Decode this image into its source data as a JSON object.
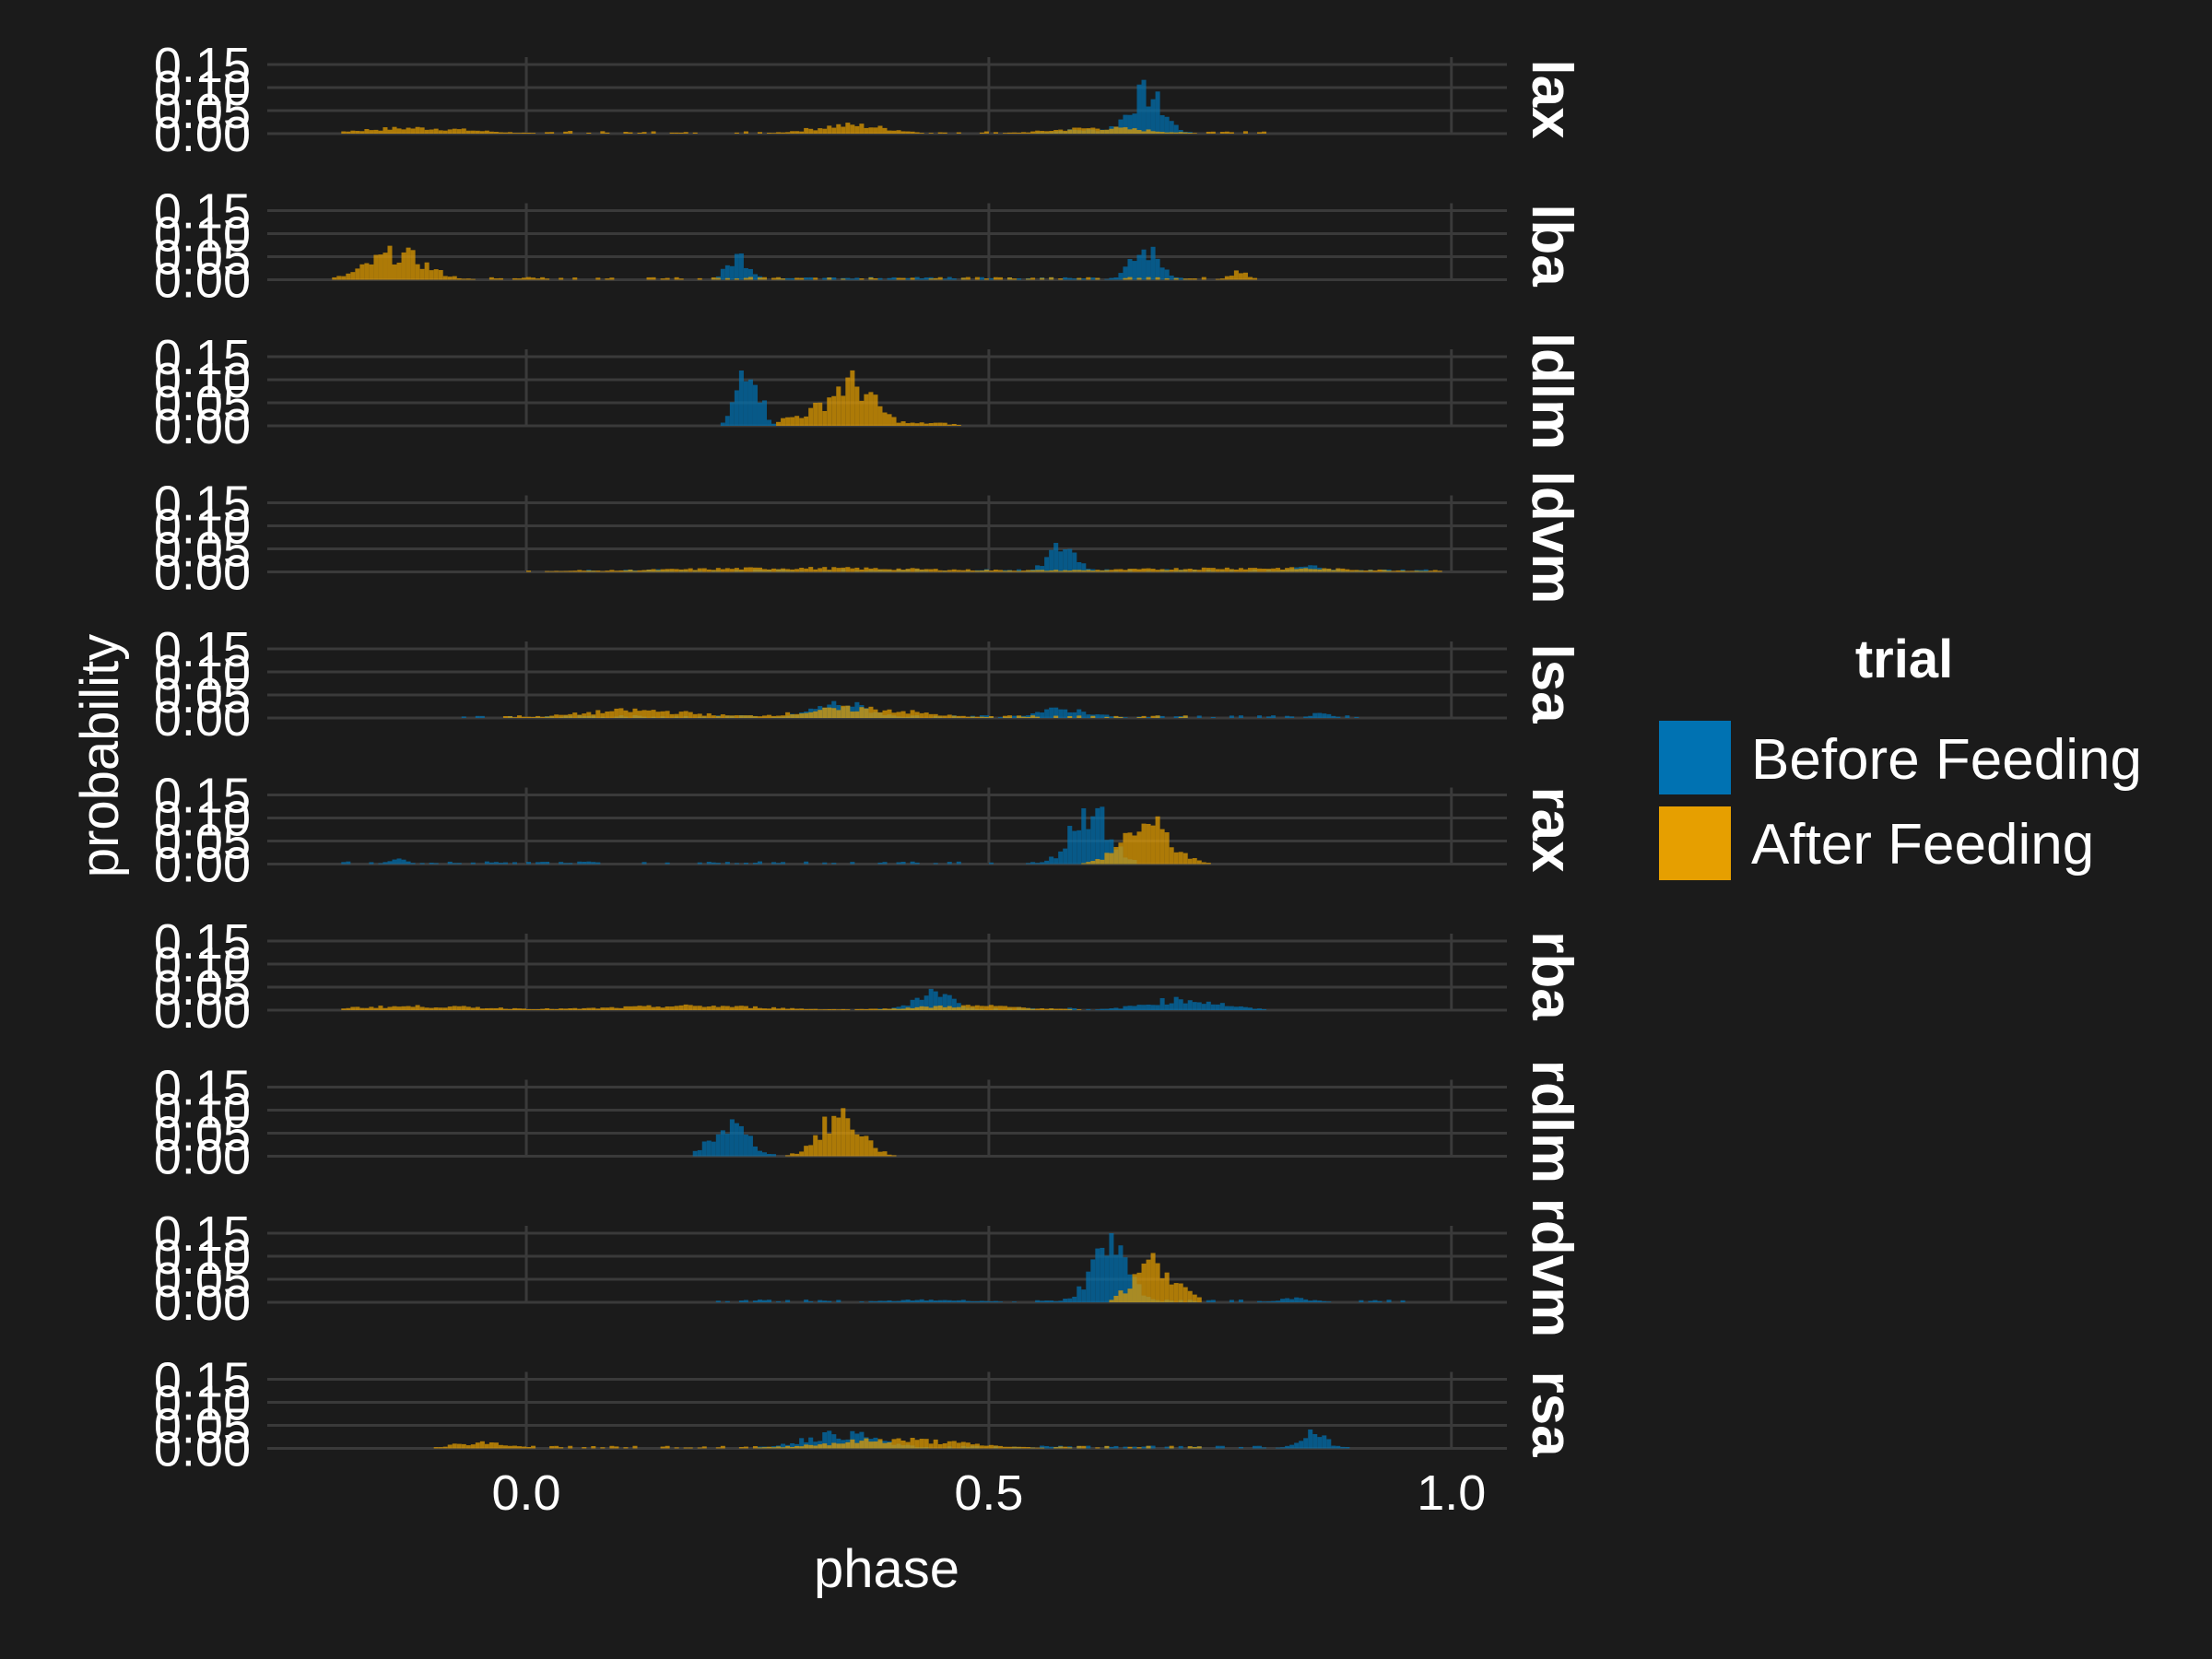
{
  "chart_data": {
    "type": "histogram-facets",
    "xlabel": "phase",
    "ylabel": "probability",
    "xlim": [
      -0.28,
      1.06
    ],
    "ylim": [
      0,
      0.15
    ],
    "x_ticks": [
      "0.0",
      "0.5",
      "1.0"
    ],
    "x_tick_values": [
      0.0,
      0.5,
      1.0
    ],
    "y_ticks": [
      "0.00",
      "0.05",
      "0.10",
      "0.15"
    ],
    "y_tick_values": [
      0.0,
      0.05,
      0.1,
      0.15
    ],
    "bin_width": 0.005,
    "legend": {
      "title": "trial",
      "items": [
        {
          "label": "Before Feeding",
          "color": "#0072B2"
        },
        {
          "label": "After Feeding",
          "color": "#E69F00"
        }
      ]
    },
    "panels": [
      {
        "label": "lax",
        "series": [
          {
            "name": "Before Feeding",
            "peaks": [
              [
                0.67,
                0.085,
                0.018
              ],
              [
                0.6,
                0.008,
                0.03
              ]
            ],
            "range": [
              0.55,
              0.72
            ]
          },
          {
            "name": "After Feeding",
            "peaks": [
              [
                -0.12,
                0.012,
                0.06
              ],
              [
                0.35,
                0.018,
                0.04
              ],
              [
                0.62,
                0.012,
                0.05
              ]
            ],
            "range": [
              -0.2,
              0.8
            ]
          }
        ]
      },
      {
        "label": "lba",
        "series": [
          {
            "name": "Before Feeding",
            "peaks": [
              [
                0.23,
                0.05,
                0.012
              ],
              [
                0.67,
                0.06,
                0.016
              ]
            ],
            "range": [
              0.2,
              0.72
            ]
          },
          {
            "name": "After Feeding",
            "peaks": [
              [
                -0.14,
                0.055,
                0.03
              ],
              [
                0.77,
                0.015,
                0.01
              ]
            ],
            "range": [
              -0.21,
              0.79
            ]
          }
        ]
      },
      {
        "label": "ldlm",
        "series": [
          {
            "name": "Before Feeding",
            "peaks": [
              [
                0.24,
                0.15,
                0.011
              ]
            ],
            "range": [
              0.21,
              0.27
            ]
          },
          {
            "name": "After Feeding",
            "peaks": [
              [
                0.35,
                0.09,
                0.025
              ],
              [
                0.29,
                0.015,
                0.02
              ],
              [
                0.44,
                0.006,
                0.02
              ]
            ],
            "range": [
              0.27,
              0.47
            ]
          }
        ]
      },
      {
        "label": "ldvm",
        "series": [
          {
            "name": "Before Feeding",
            "peaks": [
              [
                0.58,
                0.055,
                0.015
              ],
              [
                0.85,
                0.012,
                0.02
              ]
            ],
            "range": [
              0.05,
              0.98
            ]
          },
          {
            "name": "After Feeding",
            "peaks": [
              [
                0.3,
                0.008,
                0.15
              ],
              [
                0.78,
                0.008,
                0.12
              ]
            ],
            "range": [
              0.0,
              0.99
            ]
          }
        ]
      },
      {
        "label": "lsa",
        "series": [
          {
            "name": "Before Feeding",
            "peaks": [
              [
                0.34,
                0.03,
                0.03
              ],
              [
                0.58,
                0.018,
                0.03
              ],
              [
                0.86,
                0.012,
                0.01
              ]
            ],
            "range": [
              -0.07,
              0.9
            ]
          },
          {
            "name": "After Feeding",
            "peaks": [
              [
                0.12,
                0.016,
                0.06
              ],
              [
                0.36,
                0.02,
                0.06
              ]
            ],
            "range": [
              -0.06,
              0.72
            ]
          }
        ]
      },
      {
        "label": "rax",
        "series": [
          {
            "name": "Before Feeding",
            "peaks": [
              [
                0.61,
                0.12,
                0.02
              ],
              [
                -0.14,
                0.01,
                0.01
              ]
            ],
            "range": [
              -0.2,
              0.66
            ]
          },
          {
            "name": "After Feeding",
            "peaks": [
              [
                0.67,
                0.085,
                0.025
              ]
            ],
            "range": [
              0.6,
              0.74
            ]
          }
        ]
      },
      {
        "label": "rba",
        "series": [
          {
            "name": "Before Feeding",
            "peaks": [
              [
                0.44,
                0.04,
                0.02
              ],
              [
                0.71,
                0.022,
                0.04
              ]
            ],
            "range": [
              0.38,
              0.8
            ]
          },
          {
            "name": "After Feeding",
            "peaks": [
              [
                -0.12,
                0.008,
                0.08
              ],
              [
                0.18,
                0.009,
                0.08
              ],
              [
                0.48,
                0.009,
                0.06
              ]
            ],
            "range": [
              -0.2,
              0.6
            ]
          }
        ]
      },
      {
        "label": "rdlm",
        "series": [
          {
            "name": "Before Feeding",
            "peaks": [
              [
                0.22,
                0.065,
                0.02
              ]
            ],
            "range": [
              0.18,
              0.27
            ]
          },
          {
            "name": "After Feeding",
            "peaks": [
              [
                0.34,
                0.085,
                0.022
              ]
            ],
            "range": [
              0.28,
              0.4
            ]
          }
        ]
      },
      {
        "label": "rdvm",
        "series": [
          {
            "name": "Before Feeding",
            "peaks": [
              [
                0.63,
                0.11,
                0.02
              ],
              [
                0.83,
                0.008,
                0.02
              ],
              [
                0.44,
                0.005,
                0.05
              ]
            ],
            "range": [
              0.2,
              0.95
            ]
          },
          {
            "name": "After Feeding",
            "peaks": [
              [
                0.68,
                0.085,
                0.022
              ]
            ],
            "range": [
              0.63,
              0.73
            ]
          }
        ]
      },
      {
        "label": "rsa",
        "series": [
          {
            "name": "Before Feeding",
            "peaks": [
              [
                0.34,
                0.03,
                0.04
              ],
              [
                0.85,
                0.03,
                0.015
              ]
            ],
            "range": [
              0.25,
              0.89
            ]
          },
          {
            "name": "After Feeding",
            "peaks": [
              [
                0.4,
                0.018,
                0.07
              ],
              [
                -0.05,
                0.012,
                0.03
              ]
            ],
            "range": [
              -0.1,
              0.74
            ]
          }
        ]
      }
    ]
  }
}
